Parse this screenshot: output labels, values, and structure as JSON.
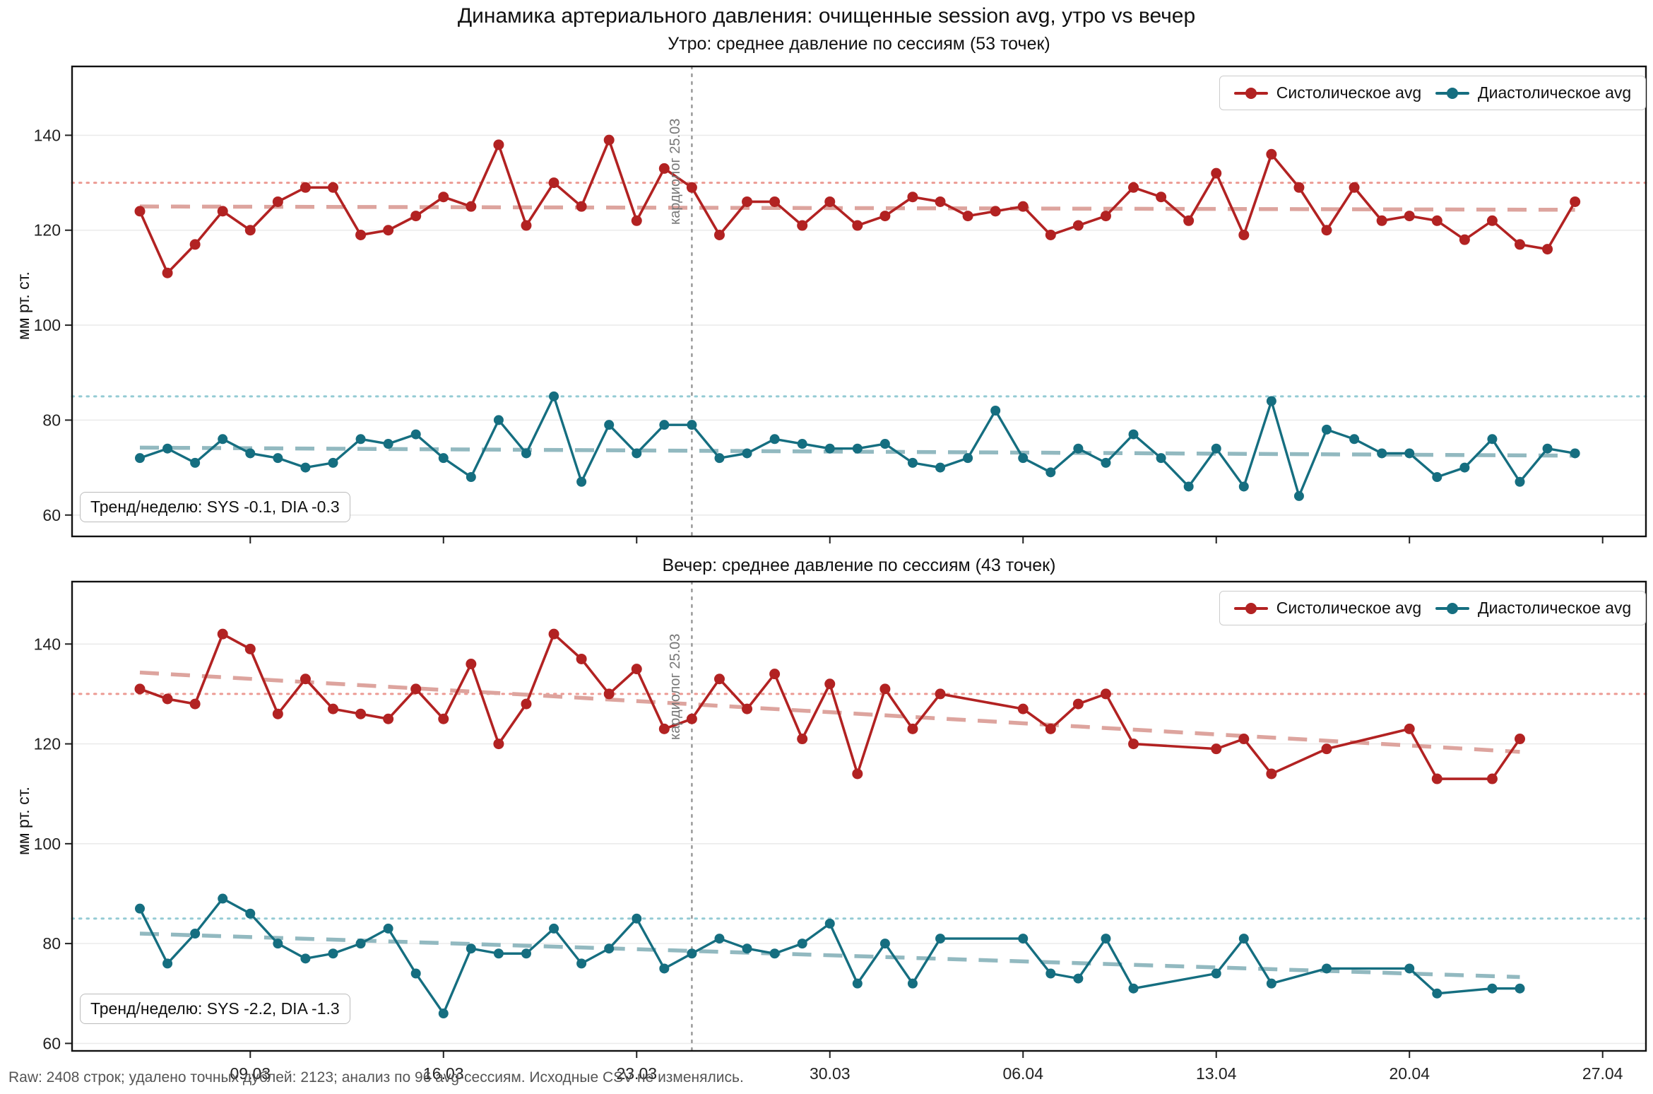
{
  "suptitle": "Динамика артериального давления: очищенные session avg, утро vs вечер",
  "ylabel": "мм рт. ст.",
  "footer": "Raw: 2408 строк; удалено точных дублей: 2123; анализ по 96 avg-сессиям. Исходные CSV не изменялись.",
  "legend": {
    "sys": "Систолическое avg",
    "dia": "Диастолическое avg"
  },
  "colors": {
    "sys": "#b22222",
    "dia": "#156e80",
    "sys_trend": "#dda49e",
    "dia_trend": "#92b9c0",
    "sys_ref": "#ec9a93",
    "dia_ref": "#94cbd4",
    "vline": "#999999",
    "grid": "#ebebeb",
    "spine": "#111111",
    "tick": "#222222"
  },
  "chart_data": [
    {
      "type": "line",
      "title": "Утро: среднее давление по сессиям (53 точек)",
      "trend_label": "Тренд/неделю: SYS -0.1, DIA -0.3",
      "ylim": [
        55.5,
        154.5
      ],
      "yticks": [
        60,
        80,
        100,
        120,
        140
      ],
      "xticks": [
        {
          "day": 4,
          "label": "09.03"
        },
        {
          "day": 11,
          "label": "16.03"
        },
        {
          "day": 18,
          "label": "23.03"
        },
        {
          "day": 25,
          "label": "30.03"
        },
        {
          "day": 32,
          "label": "06.04"
        },
        {
          "day": 39,
          "label": "13.04"
        },
        {
          "day": 46,
          "label": "20.04"
        },
        {
          "day": 53,
          "label": "27.04"
        }
      ],
      "ref_lines": {
        "sys": 130,
        "dia": 85
      },
      "vline": {
        "day": 20,
        "label": "кардиолог 25.03"
      },
      "series": [
        {
          "name": "Систолическое avg",
          "key": "sys",
          "dates": [
            "05.03",
            "06.03",
            "07.03",
            "08.03",
            "09.03",
            "10.03",
            "11.03",
            "12.03",
            "13.03",
            "14.03",
            "15.03",
            "16.03",
            "17.03",
            "18.03",
            "19.03",
            "20.03",
            "21.03",
            "22.03",
            "23.03",
            "24.03",
            "25.03",
            "26.03",
            "27.03",
            "28.03",
            "29.03",
            "30.03",
            "31.03",
            "01.04",
            "02.04",
            "03.04",
            "04.04",
            "05.04",
            "06.04",
            "07.04",
            "08.04",
            "09.04",
            "10.04",
            "11.04",
            "12.04",
            "13.04",
            "14.04",
            "15.04",
            "16.04",
            "17.04",
            "18.04",
            "19.04",
            "20.04",
            "21.04",
            "22.04",
            "23.04",
            "24.04",
            "25.04",
            "26.04"
          ],
          "values": [
            124,
            111,
            117,
            124,
            120,
            126,
            129,
            129,
            119,
            120,
            123,
            127,
            125,
            138,
            121,
            130,
            125,
            139,
            122,
            133,
            129,
            119,
            126,
            126,
            121,
            126,
            121,
            123,
            127,
            126,
            123,
            124,
            125,
            119,
            121,
            123,
            129,
            127,
            122,
            132,
            119,
            136,
            129,
            120,
            129,
            122,
            123,
            122,
            118,
            122,
            117,
            116,
            126
          ]
        },
        {
          "name": "Диастолическое avg",
          "key": "dia",
          "dates": [
            "05.03",
            "06.03",
            "07.03",
            "08.03",
            "09.03",
            "10.03",
            "11.03",
            "12.03",
            "13.03",
            "14.03",
            "15.03",
            "16.03",
            "17.03",
            "22.03",
            "23.03",
            "24.03",
            "25.03",
            "26.03",
            "27.03",
            "28.03",
            "29.03",
            "30.03",
            "31.03",
            "01.04",
            "02.04",
            "03.04",
            "04.04",
            "05.04",
            "06.04",
            "07.04",
            "08.04",
            "09.04",
            "10.04",
            "11.04",
            "12.04",
            "13.04",
            "14.04",
            "15.04",
            "16.04",
            "17.04",
            "18.04",
            "19.04",
            "20.04",
            "21.04",
            "22.04",
            "23.04",
            "24.04",
            "25.04",
            "26.04",
            "18.03",
            "19.03",
            "20.03",
            "21.03"
          ],
          "values": [
            72,
            74,
            71,
            76,
            73,
            72,
            70,
            71,
            76,
            75,
            77,
            72,
            68,
            80,
            73,
            85,
            67,
            79,
            73,
            79,
            79,
            72,
            73,
            76,
            75,
            74,
            74,
            75,
            71,
            70,
            72,
            82,
            72,
            69,
            74,
            71,
            77,
            72,
            66,
            74,
            66,
            84,
            64,
            78,
            76,
            73,
            73,
            68,
            70,
            76,
            67,
            74,
            73
          ]
        }
      ],
      "trend": {
        "sys": {
          "day": [
            0,
            52
          ],
          "value": [
            125.0,
            124.3
          ]
        },
        "dia": {
          "day": [
            0,
            52
          ],
          "value": [
            74.2,
            72.5
          ]
        }
      }
    },
    {
      "type": "line",
      "title": "Вечер: среднее давление по сессиям (43 точек)",
      "trend_label": "Тренд/неделю: SYS -2.2, DIA -1.3",
      "ylim": [
        58.5,
        152.5
      ],
      "yticks": [
        60,
        80,
        100,
        120,
        140
      ],
      "xticks": [
        {
          "day": 4,
          "label": "09.03"
        },
        {
          "day": 11,
          "label": "16.03"
        },
        {
          "day": 18,
          "label": "23.03"
        },
        {
          "day": 25,
          "label": "30.03"
        },
        {
          "day": 32,
          "label": "06.04"
        },
        {
          "day": 39,
          "label": "13.04"
        },
        {
          "day": 46,
          "label": "20.04"
        },
        {
          "day": 53,
          "label": "27.04"
        }
      ],
      "ref_lines": {
        "sys": 130,
        "dia": 85
      },
      "vline": {
        "day": 20,
        "label": "кардиолог 25.03"
      },
      "day_idx": [
        0,
        1,
        2,
        3,
        4,
        5,
        6,
        7,
        8,
        9,
        10,
        11,
        12,
        13,
        14,
        15,
        16,
        17,
        18,
        19,
        20,
        21,
        22,
        23,
        24,
        25,
        26,
        27,
        28,
        29,
        32,
        33,
        34,
        35,
        36,
        39,
        40,
        41,
        43,
        46,
        47,
        49,
        50
      ],
      "series": [
        {
          "name": "Систолическое avg",
          "key": "sys",
          "dates": [
            "05.03",
            "06.03",
            "07.03",
            "08.03",
            "09.03",
            "10.03",
            "11.03",
            "12.03",
            "13.03",
            "14.03",
            "15.03",
            "16.03",
            "17.03",
            "18.03",
            "19.03",
            "20.03",
            "21.03",
            "22.03",
            "23.03",
            "24.03",
            "25.03",
            "26.03",
            "27.03",
            "28.03",
            "29.03",
            "30.03",
            "31.03",
            "01.04",
            "02.04",
            "03.04",
            "06.04",
            "07.04",
            "08.04",
            "09.04",
            "10.04",
            "13.04",
            "14.04",
            "15.04",
            "17.04",
            "20.04",
            "21.04",
            "23.04",
            "24.04"
          ],
          "values": [
            131,
            129,
            128,
            142,
            139,
            126,
            133,
            127,
            126,
            125,
            131,
            125,
            136,
            120,
            128,
            142,
            137,
            130,
            135,
            123,
            125,
            133,
            127,
            134,
            121,
            132,
            114,
            131,
            123,
            130,
            127,
            123,
            128,
            130,
            120,
            119,
            121,
            114,
            119,
            123,
            113,
            113,
            121
          ]
        },
        {
          "name": "Диастолическое avg",
          "key": "dia",
          "dates": [
            "05.03",
            "06.03",
            "07.03",
            "08.03",
            "09.03",
            "10.03",
            "11.03",
            "12.03",
            "13.03",
            "14.03",
            "15.03",
            "16.03",
            "17.03",
            "18.03",
            "19.03",
            "20.03",
            "21.03",
            "22.03",
            "23.03",
            "24.03",
            "25.03",
            "26.03",
            "27.03",
            "28.03",
            "29.03",
            "30.03",
            "31.03",
            "01.04",
            "02.04",
            "03.04",
            "06.04",
            "07.04",
            "08.04",
            "09.04",
            "10.04",
            "13.04",
            "14.04",
            "15.04",
            "17.04",
            "20.04",
            "21.04",
            "23.04",
            "24.04"
          ],
          "values": [
            87,
            76,
            82,
            89,
            86,
            80,
            77,
            78,
            80,
            83,
            74,
            66,
            79,
            78,
            78,
            83,
            76,
            79,
            85,
            75,
            78,
            81,
            79,
            78,
            80,
            84,
            72,
            80,
            72,
            81,
            81,
            74,
            73,
            81,
            71,
            74,
            81,
            72,
            75,
            75,
            70,
            71,
            71
          ]
        }
      ],
      "trend": {
        "sys": {
          "day": [
            0,
            50
          ],
          "value": [
            134.3,
            118.4
          ]
        },
        "dia": {
          "day": [
            0,
            50
          ],
          "value": [
            82.0,
            73.3
          ]
        }
      }
    }
  ]
}
